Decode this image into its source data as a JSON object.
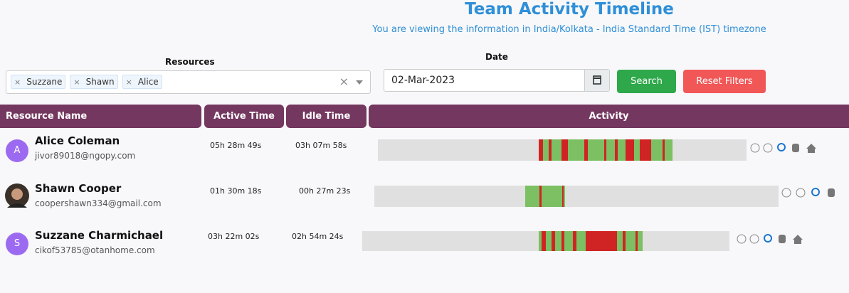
{
  "header": {
    "title": "Team Activity Timeline",
    "subtitle": "You are viewing the information in India/Kolkata - India Standard Time (IST) timezone"
  },
  "filters": {
    "resources_label": "Resources",
    "resources": [
      "Suzzane",
      "Shawn",
      "Alice"
    ],
    "date_label": "Date",
    "date": "02-Mar-2023",
    "search": "Search",
    "reset": "Reset Filters"
  },
  "table": {
    "columns": [
      "Resource Name",
      "Active Time",
      "Idle Time",
      "Activity"
    ],
    "rows": [
      {
        "initial": "A",
        "name": "Alice Coleman",
        "email": "jivor89018@ngopy.com",
        "active": "05h 28m 49s",
        "idle": "03h 07m 58s"
      },
      {
        "name": "Shawn Cooper",
        "email": "coopershawn334@gmail.com",
        "active": "01h 30m 18s",
        "idle": "00h 27m 23s"
      },
      {
        "initial": "S",
        "name": "Suzzane Charmichael",
        "email": "cikof53785@otanhome.com",
        "active": "03h 22m 02s",
        "idle": "02h 54m 24s"
      }
    ]
  }
}
